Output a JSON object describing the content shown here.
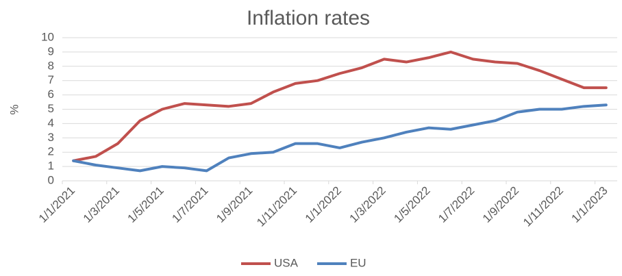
{
  "chart_data": {
    "type": "line",
    "title": "Inflation rates",
    "y_label": "%",
    "categories": [
      "1/1/2021",
      null,
      "1/3/2021",
      null,
      "1/5/2021",
      null,
      "1/7/2021",
      null,
      "1/9/2021",
      null,
      "1/11/2021",
      null,
      "1/1/2022",
      null,
      "1/3/2022",
      null,
      "1/5/2022",
      null,
      "1/7/2022",
      null,
      "1/9/2022",
      null,
      "1/11/2022",
      null,
      "1/1/2023"
    ],
    "series": [
      {
        "name": "USA",
        "color": "#c0504d",
        "values": [
          1.4,
          1.7,
          2.6,
          4.2,
          5.0,
          5.4,
          5.3,
          5.2,
          5.4,
          6.2,
          6.8,
          7.0,
          7.5,
          7.9,
          8.5,
          8.3,
          8.6,
          9.0,
          8.5,
          8.3,
          8.2,
          7.7,
          7.1,
          6.5,
          6.5
        ]
      },
      {
        "name": "EU",
        "color": "#4f81bd",
        "values": [
          1.4,
          1.1,
          0.9,
          0.7,
          1.0,
          0.9,
          0.7,
          1.6,
          1.9,
          2.0,
          2.6,
          2.6,
          2.3,
          2.7,
          3.0,
          3.4,
          3.7,
          3.6,
          3.9,
          4.2,
          4.8,
          5.0,
          5.0,
          5.2,
          5.3
        ]
      }
    ],
    "ylim": [
      0,
      10
    ],
    "yticks": [
      0,
      1,
      2,
      3,
      4,
      5,
      6,
      7,
      8,
      9,
      10
    ],
    "grid": true,
    "legend": "bottom"
  }
}
